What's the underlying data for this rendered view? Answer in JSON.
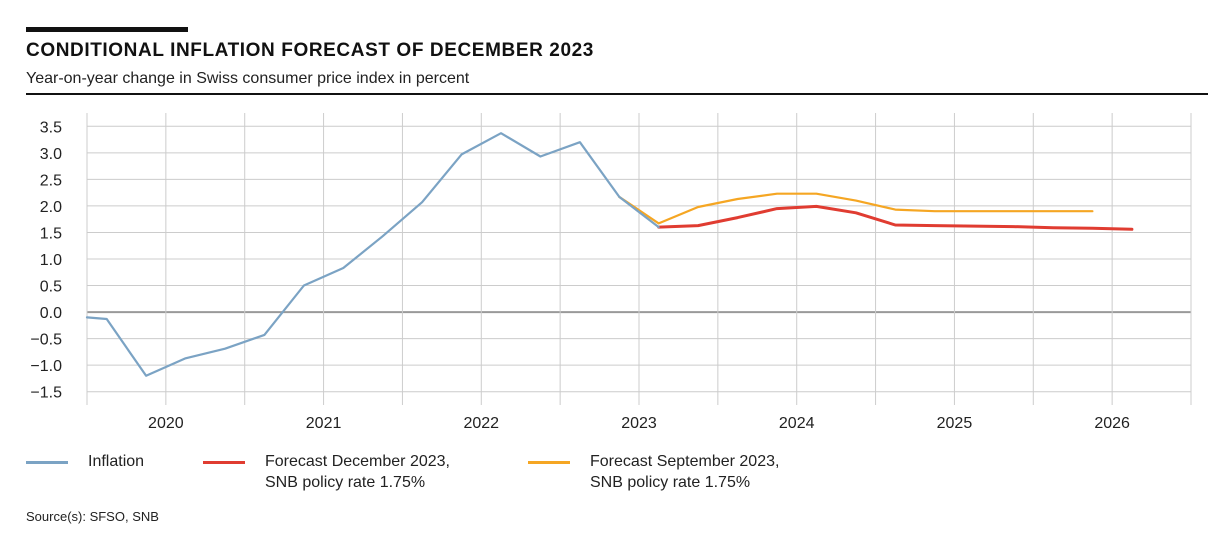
{
  "header": {
    "title": "CONDITIONAL INFLATION FORECAST OF DECEMBER 2023",
    "subtitle": "Year-on-year change in Swiss consumer price index in percent"
  },
  "source": "Source(s): SFSO, SNB",
  "colors": {
    "inflation": "#7ba3c4",
    "forecast_dec": "#e03c31",
    "forecast_sep": "#f5a623",
    "grid": "#cccccc",
    "zero": "#999999"
  },
  "chart_data": {
    "type": "line",
    "title": "CONDITIONAL INFLATION FORECAST OF DECEMBER 2023",
    "subtitle": "Year-on-year change in Swiss consumer price index in percent",
    "ylim": [
      -1.75,
      3.75
    ],
    "yticks": [
      "3.5",
      "3.0",
      "2.5",
      "2.0",
      "1.5",
      "1.0",
      "0.5",
      "0.0",
      "−0.5",
      "−1.0",
      "−1.5"
    ],
    "ytick_values": [
      3.5,
      3.0,
      2.5,
      2.0,
      1.5,
      1.0,
      0.5,
      0.0,
      -0.5,
      -1.0,
      -1.5
    ],
    "xlim": [
      2019.5,
      2026.5
    ],
    "xtick_labels": [
      "2020",
      "2021",
      "2022",
      "2023",
      "2024",
      "2025",
      "2026"
    ],
    "x_grid": [
      2019.5,
      2020.0,
      2020.5,
      2021.0,
      2021.5,
      2022.0,
      2022.5,
      2023.0,
      2023.5,
      2024.0,
      2024.5,
      2025.0,
      2025.5,
      2026.0,
      2026.5
    ],
    "grid": true,
    "legend_position": "bottom",
    "series": [
      {
        "name": "Inflation",
        "color": "#7ba3c4",
        "points": [
          [
            2019.5,
            -0.1
          ],
          [
            2019.625,
            -0.13
          ],
          [
            2019.875,
            -1.2
          ],
          [
            2020.125,
            -0.87
          ],
          [
            2020.375,
            -0.69
          ],
          [
            2020.625,
            -0.43
          ],
          [
            2020.875,
            0.5
          ],
          [
            2021.125,
            0.83
          ],
          [
            2021.375,
            1.43
          ],
          [
            2021.625,
            2.07
          ],
          [
            2021.875,
            2.97
          ],
          [
            2022.125,
            3.37
          ],
          [
            2022.375,
            2.93
          ],
          [
            2022.625,
            3.2
          ],
          [
            2022.875,
            2.17
          ],
          [
            2023.125,
            1.6
          ]
        ]
      },
      {
        "name": "Forecast December 2023,\nSNB policy rate 1.75%",
        "color": "#e03c31",
        "points": [
          [
            2023.125,
            1.6
          ],
          [
            2023.375,
            1.63
          ],
          [
            2023.625,
            1.78
          ],
          [
            2023.875,
            1.95
          ],
          [
            2024.125,
            1.99
          ],
          [
            2024.375,
            1.87
          ],
          [
            2024.625,
            1.64
          ],
          [
            2024.875,
            1.63
          ],
          [
            2025.125,
            1.62
          ],
          [
            2025.375,
            1.61
          ],
          [
            2025.625,
            1.59
          ],
          [
            2025.875,
            1.58
          ],
          [
            2026.125,
            1.56
          ]
        ]
      },
      {
        "name": "Forecast September 2023,\nSNB policy rate 1.75%",
        "color": "#f5a623",
        "points": [
          [
            2022.875,
            2.17
          ],
          [
            2023.125,
            1.67
          ],
          [
            2023.375,
            1.98
          ],
          [
            2023.625,
            2.13
          ],
          [
            2023.875,
            2.23
          ],
          [
            2024.125,
            2.23
          ],
          [
            2024.375,
            2.1
          ],
          [
            2024.625,
            1.93
          ],
          [
            2024.875,
            1.9
          ],
          [
            2025.125,
            1.9
          ],
          [
            2025.375,
            1.9
          ],
          [
            2025.625,
            1.9
          ],
          [
            2025.875,
            1.9
          ]
        ]
      }
    ]
  }
}
